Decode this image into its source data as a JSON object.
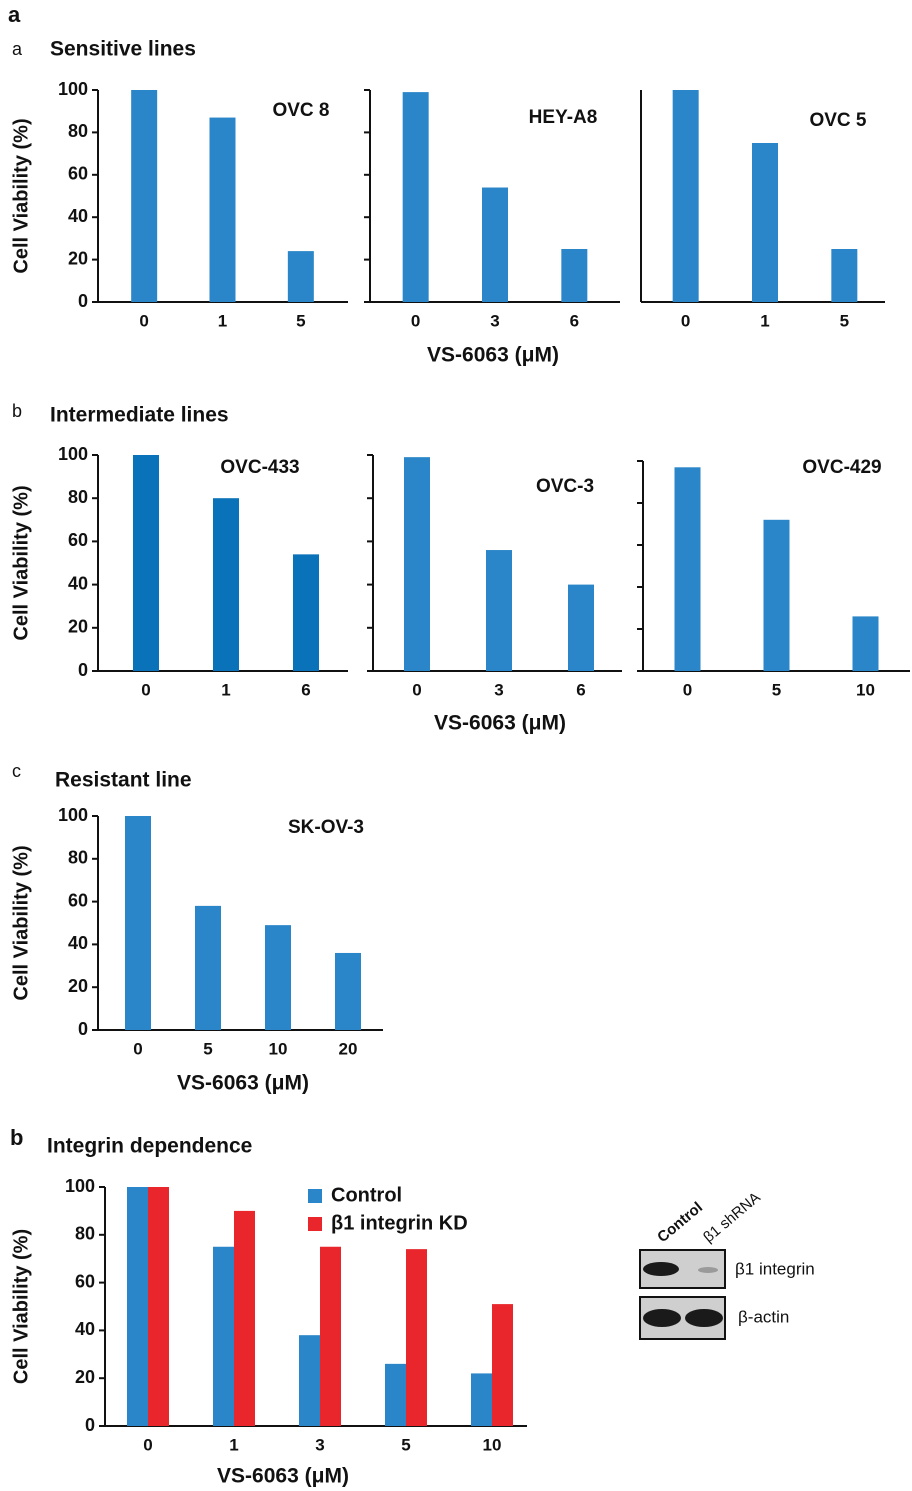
{
  "figure_label": "a",
  "sections": [
    {
      "label": "a",
      "title": "Sensitive lines"
    },
    {
      "label": "b",
      "title": "Intermediate lines"
    },
    {
      "label": "c",
      "title": "Resistant line"
    },
    {
      "label": "b",
      "title": "Integrin dependence"
    }
  ],
  "blot": {
    "lanes": [
      "Control",
      "β1 shRNA"
    ],
    "rows": [
      "β1 integrin",
      "β-actin"
    ]
  },
  "chart_data": [
    {
      "type": "bar",
      "annotation": "OVC 8",
      "ylabel": "Cell Viability (%)",
      "categories": [
        "0",
        "1",
        "5"
      ],
      "values": [
        100,
        87,
        24
      ],
      "color": "#2a86c8",
      "ylim": [
        0,
        100
      ],
      "yticks": [
        0,
        20,
        40,
        60,
        80,
        100
      ],
      "ytick_labels": true
    },
    {
      "type": "bar",
      "annotation": "HEY-A8",
      "xlabel": "VS-6063 (μM)",
      "categories": [
        "0",
        "3",
        "6"
      ],
      "values": [
        99,
        54,
        25
      ],
      "color": "#2a86c8",
      "ylim": [
        0,
        100
      ],
      "yticks": [
        0,
        20,
        40,
        60,
        80,
        100
      ],
      "ytick_labels": false
    },
    {
      "type": "bar",
      "annotation": "OVC 5",
      "categories": [
        "0",
        "1",
        "5"
      ],
      "values": [
        100,
        75,
        25
      ],
      "color": "#2a86c8",
      "ylim": [
        0,
        100
      ]
    },
    {
      "type": "bar",
      "annotation": "OVC-433",
      "ylabel": "Cell Viability (%)",
      "categories": [
        "0",
        "1",
        "6"
      ],
      "values": [
        100,
        80,
        54
      ],
      "color": "#0a72b8",
      "ylim": [
        0,
        100
      ],
      "yticks": [
        0,
        20,
        40,
        60,
        80,
        100
      ],
      "ytick_labels": true
    },
    {
      "type": "bar",
      "annotation": "OVC-3",
      "xlabel": "VS-6063 (μM)",
      "categories": [
        "0",
        "3",
        "6"
      ],
      "values": [
        99,
        56,
        40
      ],
      "color": "#2a86c8",
      "ylim": [
        0,
        100
      ],
      "yticks": [
        0,
        20,
        40,
        60,
        80,
        100
      ],
      "ytick_labels": false
    },
    {
      "type": "bar",
      "annotation": "OVC-429",
      "categories": [
        "0",
        "5",
        "10"
      ],
      "values": [
        97,
        72,
        26
      ],
      "color": "#2a86c8",
      "ylim": [
        0,
        100
      ],
      "yticks": [
        0,
        20,
        40,
        60,
        80,
        100
      ],
      "ytick_labels": false
    },
    {
      "type": "bar",
      "annotation": "SK-OV-3",
      "ylabel": "Cell Viability (%)",
      "xlabel": "VS-6063 (μM)",
      "categories": [
        "0",
        "5",
        "10",
        "20"
      ],
      "values": [
        100,
        58,
        49,
        36
      ],
      "color": "#2a86c8",
      "ylim": [
        0,
        100
      ],
      "yticks": [
        0,
        20,
        40,
        60,
        80,
        100
      ],
      "ytick_labels": true
    },
    {
      "type": "bar",
      "ylabel": "Cell Viability (%)",
      "xlabel": "VS-6063 (μM)",
      "categories": [
        "0",
        "1",
        "3",
        "5",
        "10"
      ],
      "series": [
        {
          "name": "Control",
          "color": "#2a86c8",
          "values": [
            100,
            75,
            38,
            26,
            22
          ]
        },
        {
          "name": "β1 integrin KD",
          "color": "#e8262b",
          "values": [
            100,
            90,
            75,
            74,
            51
          ]
        }
      ],
      "ylim": [
        0,
        100
      ],
      "yticks": [
        0,
        20,
        40,
        60,
        80,
        100
      ],
      "ytick_labels": true
    }
  ]
}
